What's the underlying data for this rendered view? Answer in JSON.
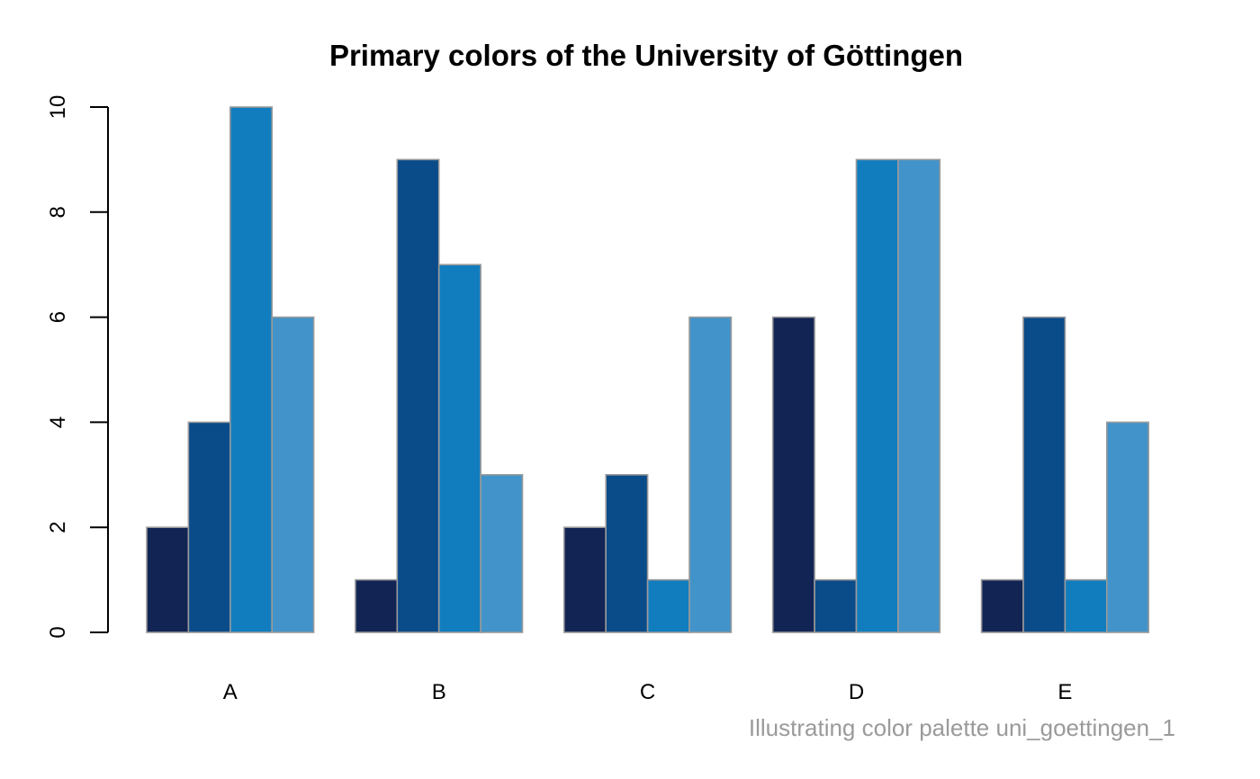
{
  "chart_data": {
    "type": "bar",
    "title": "Primary colors of the University of Göttingen",
    "caption": "Illustrating color palette uni_goettingen_1",
    "categories": [
      "A",
      "B",
      "C",
      "D",
      "E"
    ],
    "series": [
      {
        "values": [
          2,
          1,
          2,
          6,
          1
        ],
        "color": "#122454"
      },
      {
        "values": [
          4,
          9,
          3,
          1,
          6
        ],
        "color": "#0a4b89"
      },
      {
        "values": [
          10,
          7,
          1,
          9,
          1
        ],
        "color": "#117dbe"
      },
      {
        "values": [
          6,
          3,
          6,
          9,
          4
        ],
        "color": "#4293c9"
      }
    ],
    "ylim": [
      0,
      10
    ],
    "yticks": [
      0,
      2,
      4,
      6,
      8,
      10
    ],
    "xlabel": "",
    "ylabel": "",
    "grid": false,
    "legend": "none"
  }
}
